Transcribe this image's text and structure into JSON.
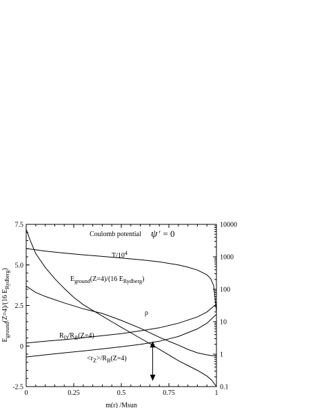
{
  "chart_data": {
    "type": "line",
    "xlabel": "m(r) /Msun",
    "ylabel_left": {
      "main": "E",
      "sub1": "ground",
      "mid": "(Z=4)/(16 E",
      "sub2": "Rydberg",
      "end": ")"
    },
    "xlim": [
      0,
      1
    ],
    "ylim_left": [
      -2.5,
      7.5
    ],
    "ylim_right": [
      0.1,
      10000
    ],
    "right_axis_log": true,
    "grid": false,
    "legend": "none",
    "x_ticks": [
      "0",
      "0.25",
      "0.5",
      "0.75",
      "1"
    ],
    "y_ticks_left": [
      "-2.5",
      "0",
      "2.5",
      "5.0",
      "7.5"
    ],
    "y_ticks_right": [
      "0.1",
      "1",
      "10",
      "100",
      "1000",
      "10000"
    ],
    "annotations": {
      "potential": "Coulomb potential",
      "psi": "ψ",
      "psi_eq": "′ = 0",
      "T_main": "T/10",
      "T_sup": "4",
      "E_main": "E",
      "E_sub1": "ground",
      "E_mid": "(Z=4)/(16 E",
      "E_sub2": "Rydberg",
      "E_end": ")",
      "rho": "ρ",
      "RD_1": "R",
      "RD_sub1": "D",
      "RD_2": "/R",
      "RD_sub2": "B",
      "RD_3": "(Z=4)",
      "rz_1": "<r",
      "rz_sub1": "Z",
      "rz_2": ">/R",
      "rz_sub2": "B",
      "rz_3": "(Z=4)"
    },
    "series": [
      {
        "axis": "left",
        "label_key": "E",
        "x": [
          0,
          0.02,
          0.05,
          0.1,
          0.15,
          0.2,
          0.25,
          0.3,
          0.35,
          0.4,
          0.45,
          0.5,
          0.55,
          0.6,
          0.65,
          0.7,
          0.75,
          0.8,
          0.85,
          0.9,
          0.95,
          0.975,
          1.0
        ],
        "y": [
          7.2,
          6.55,
          5.7,
          4.85,
          4.15,
          3.55,
          3.0,
          2.55,
          2.2,
          1.85,
          1.5,
          1.15,
          0.82,
          0.48,
          0.15,
          -0.2,
          -0.55,
          -0.9,
          -1.2,
          -1.5,
          -1.85,
          -2.1,
          -2.5
        ]
      },
      {
        "axis": "right",
        "label_key": "T",
        "x": [
          0,
          0.1,
          0.2,
          0.3,
          0.4,
          0.5,
          0.6,
          0.7,
          0.8,
          0.85,
          0.9,
          0.95,
          0.97,
          0.985,
          0.995,
          1.0
        ],
        "y": [
          1800,
          1500,
          1300,
          1150,
          1030,
          920,
          810,
          700,
          560,
          480,
          390,
          280,
          210,
          130,
          40,
          20
        ]
      },
      {
        "axis": "right",
        "label_key": "rho",
        "x": [
          0,
          0.05,
          0.1,
          0.2,
          0.3,
          0.4,
          0.5,
          0.6,
          0.7,
          0.8,
          0.85,
          0.9,
          0.95,
          0.98,
          1.0
        ],
        "y": [
          125,
          80,
          60,
          38,
          25,
          18,
          11,
          6.3,
          3.3,
          1.9,
          1.4,
          1.1,
          0.95,
          0.9,
          0.88
        ]
      },
      {
        "axis": "right",
        "label_key": "RD",
        "x": [
          0,
          0.1,
          0.2,
          0.3,
          0.4,
          0.5,
          0.6,
          0.7,
          0.8,
          0.9,
          0.95,
          1.0
        ],
        "y": [
          2.2,
          2.5,
          2.8,
          3.2,
          3.7,
          4.3,
          5.2,
          6.5,
          9.0,
          14,
          20,
          35
        ]
      },
      {
        "axis": "right",
        "label_key": "rz",
        "x": [
          0,
          0.1,
          0.2,
          0.3,
          0.4,
          0.5,
          0.6,
          0.7,
          0.8,
          0.9,
          0.95,
          1.0
        ],
        "y": [
          0.82,
          0.95,
          1.1,
          1.25,
          1.45,
          1.7,
          2.0,
          2.5,
          3.5,
          6.0,
          9.0,
          17
        ]
      }
    ],
    "arrow": {
      "x": 0.665,
      "y_top": 0.3,
      "y_bottom": -2.15
    }
  }
}
